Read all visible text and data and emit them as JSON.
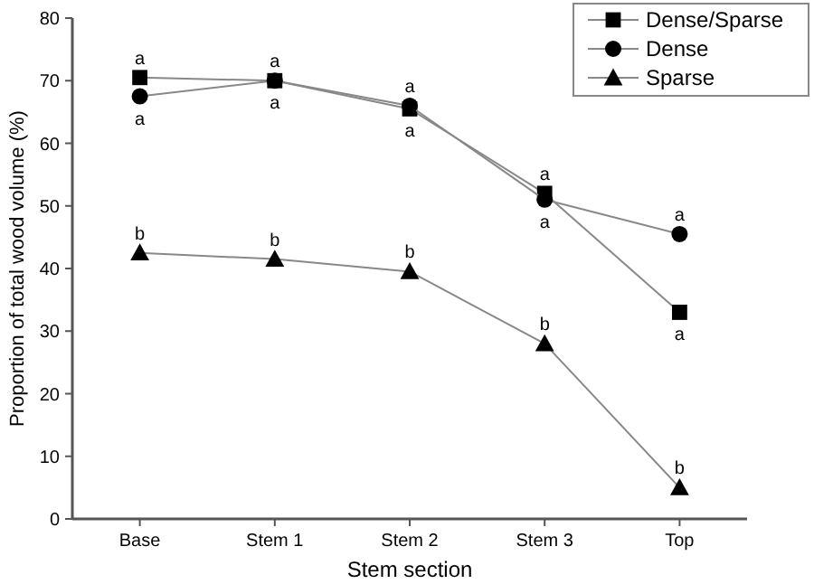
{
  "chart_data": {
    "type": "line",
    "xlabel": "Stem section",
    "ylabel": "Proportion of total wood volume (%)",
    "categories": [
      "Base",
      "Stem 1",
      "Stem 2",
      "Stem 3",
      "Top"
    ],
    "series": [
      {
        "name": "Dense/Sparse",
        "color": "#000000",
        "marker": "square",
        "values": [
          70.5,
          70,
          65.5,
          52,
          33
        ]
      },
      {
        "name": "Dense",
        "color": "#000000",
        "marker": "circle",
        "values": [
          67.5,
          70,
          66,
          51,
          45.5
        ]
      },
      {
        "name": "Sparse",
        "color": "#000000",
        "marker": "triangle",
        "values": [
          42.5,
          41.5,
          39.5,
          28,
          5
        ]
      }
    ],
    "ylim": [
      0,
      80
    ],
    "yticks": [
      0,
      10,
      20,
      30,
      40,
      50,
      60,
      70,
      80
    ],
    "grid": false,
    "legend": "top right",
    "annotations": [
      {
        "text": "a",
        "x": "Base",
        "y": 70.5
      },
      {
        "text": "a",
        "x": "Base",
        "y": 67.5
      },
      {
        "text": "a",
        "x": "Stem 1",
        "y": 70
      },
      {
        "text": "a",
        "x": "Stem 1",
        "y": 70
      },
      {
        "text": "a",
        "x": "Stem 2",
        "y": 66
      },
      {
        "text": "a",
        "x": "Stem 2",
        "y": 65.5
      },
      {
        "text": "a",
        "x": "Stem 3",
        "y": 52
      },
      {
        "text": "a",
        "x": "Stem 3",
        "y": 51
      },
      {
        "text": "a",
        "x": "Top",
        "y": 45.5
      },
      {
        "text": "a",
        "x": "Top",
        "y": 33
      },
      {
        "text": "b",
        "x": "Base",
        "y": 42.5
      },
      {
        "text": "b",
        "x": "Stem 1",
        "y": 41.5
      },
      {
        "text": "b",
        "x": "Stem 2",
        "y": 39.5
      },
      {
        "text": "b",
        "x": "Stem 3",
        "y": 28
      },
      {
        "text": "b",
        "x": "Top",
        "y": 5
      }
    ]
  }
}
